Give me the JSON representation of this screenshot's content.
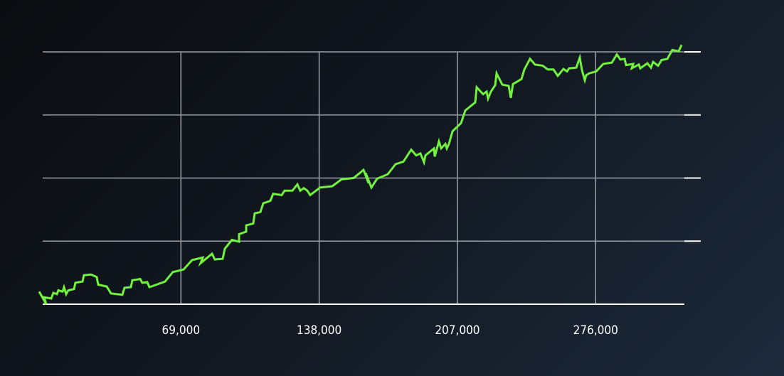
{
  "chart_data": {
    "type": "line",
    "x": [
      -1776,
      1776,
      710,
      4261,
      5327,
      7102,
      7813,
      9943,
      10654,
      11719,
      12784,
      15625,
      16336,
      19887,
      20597,
      24148,
      26989,
      27699,
      31961,
      34092,
      39773,
      40839,
      44035,
      44745,
      48652,
      49717,
      52203,
      53268,
      56819,
      61081,
      64987,
      70314,
      74575,
      79902,
      78837,
      84519,
      85939,
      89845,
      90911,
      94462,
      98013,
      98013,
      101564,
      101564,
      105115,
      105826,
      108667,
      110087,
      113638,
      115059,
      119320,
      120741,
      124647,
      127133,
      128553,
      130329,
      132105,
      133525,
      138497,
      144534,
      149150,
      155187,
      160159,
      162645,
      161224,
      164065,
      166906,
      172233,
      176140,
      180046,
      183952,
      186438,
      188569,
      190344,
      191055,
      195316,
      195671,
      197802,
      198867,
      200998,
      201708,
      202773,
      204549,
      208811,
      210941,
      215913,
      216623,
      219819,
      221595,
      222305,
      223726,
      225856,
      226567,
      229408,
      232604,
      233669,
      234734,
      238996,
      240416,
      243257,
      245743,
      249649,
      252135,
      254976,
      257106,
      259947,
      261723,
      262788,
      266339,
      268115,
      269180,
      270600,
      271311,
      272731,
      276282,
      279833,
      284095,
      286581,
      288356,
      290487,
      291197,
      294748,
      294038,
      297589,
      298299,
      301850,
      303626,
      304691,
      307177,
      308953,
      311794,
      314279,
      317475,
      318896
    ],
    "values": [
      0.2,
      0,
      0.11,
      0.09,
      0.18,
      0.16,
      0.22,
      0.2,
      0.27,
      0.16,
      0.22,
      0.24,
      0.34,
      0.36,
      0.46,
      0.47,
      0.43,
      0.31,
      0.28,
      0.17,
      0.15,
      0.26,
      0.27,
      0.38,
      0.4,
      0.34,
      0.35,
      0.27,
      0.31,
      0.36,
      0.51,
      0.55,
      0.7,
      0.74,
      0.65,
      0.8,
      0.71,
      0.72,
      0.88,
      1.02,
      0.99,
      1.11,
      1.15,
      1.25,
      1.28,
      1.44,
      1.46,
      1.6,
      1.64,
      1.75,
      1.73,
      1.8,
      1.8,
      1.9,
      1.8,
      1.84,
      1.8,
      1.73,
      1.85,
      1.87,
      1.98,
      2.0,
      2.13,
      1.92,
      2.08,
      1.85,
      1.99,
      2.06,
      2.22,
      2.26,
      2.45,
      2.36,
      2.39,
      2.25,
      2.36,
      2.47,
      2.34,
      2.58,
      2.47,
      2.54,
      2.47,
      2.54,
      2.74,
      2.87,
      3.07,
      3.2,
      3.44,
      3.33,
      3.37,
      3.26,
      3.37,
      3.47,
      3.66,
      3.48,
      3.46,
      3.27,
      3.49,
      3.57,
      3.72,
      3.89,
      3.8,
      3.78,
      3.72,
      3.72,
      3.62,
      3.73,
      3.69,
      3.74,
      3.75,
      3.91,
      3.71,
      3.55,
      3.63,
      3.66,
      3.69,
      3.81,
      3.83,
      3.96,
      3.88,
      3.89,
      3.79,
      3.81,
      3.74,
      3.8,
      3.74,
      3.82,
      3.75,
      3.84,
      3.78,
      3.87,
      3.89,
      4.03,
      4.01,
      4.11
    ],
    "color": "#72f23e",
    "xlim": [
      0,
      320300
    ],
    "ylim": [
      0,
      4
    ],
    "xticks": [
      {
        "value": 69000,
        "label": "69,000"
      },
      {
        "value": 138000,
        "label": "138,000"
      },
      {
        "value": 207000,
        "label": "207,000"
      },
      {
        "value": 276000,
        "label": "276,000"
      }
    ],
    "yticks": [
      0,
      1,
      2,
      3,
      4
    ],
    "grid": true
  }
}
